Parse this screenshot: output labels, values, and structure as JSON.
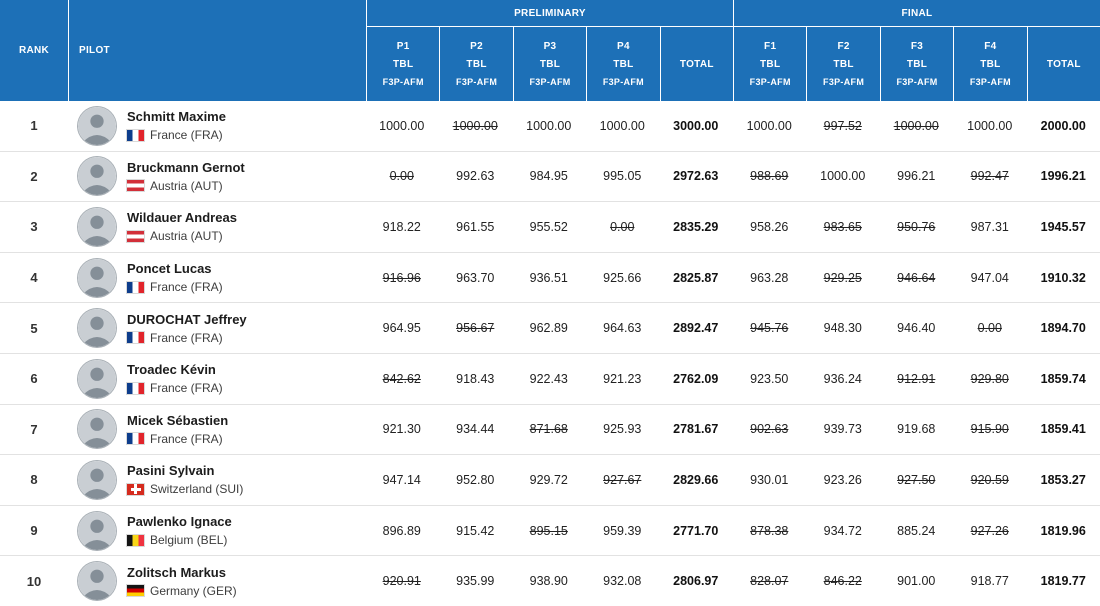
{
  "header": {
    "rank": "RANK",
    "pilot": "PILOT",
    "preliminary": {
      "group": "PRELIMINARY",
      "cols": [
        {
          "code": "P1",
          "sub": "TBL",
          "schedule": "F3P-AFM"
        },
        {
          "code": "P2",
          "sub": "TBL",
          "schedule": "F3P-AFM"
        },
        {
          "code": "P3",
          "sub": "TBL",
          "schedule": "F3P-AFM"
        },
        {
          "code": "P4",
          "sub": "TBL",
          "schedule": "F3P-AFM"
        }
      ],
      "total": "TOTAL"
    },
    "final": {
      "group": "FINAL",
      "cols": [
        {
          "code": "F1",
          "sub": "TBL",
          "schedule": "F3P-AFM"
        },
        {
          "code": "F2",
          "sub": "TBL",
          "schedule": "F3P-AFM"
        },
        {
          "code": "F3",
          "sub": "TBL",
          "schedule": "F3P-AFM"
        },
        {
          "code": "F4",
          "sub": "TBL",
          "schedule": "F3P-AFM"
        }
      ],
      "total": "TOTAL"
    }
  },
  "colors": {
    "header_blue": "#1d70b7",
    "row_divider": "#e2e2e2"
  },
  "rows": [
    {
      "rank": "1",
      "name": "Schmitt Maxime",
      "country": "France (FRA)",
      "flag": "fr",
      "prelim": [
        {
          "v": "1000.00",
          "s": false
        },
        {
          "v": "1000.00",
          "s": true
        },
        {
          "v": "1000.00",
          "s": false
        },
        {
          "v": "1000.00",
          "s": false
        }
      ],
      "prelim_total": "3000.00",
      "final": [
        {
          "v": "1000.00",
          "s": false
        },
        {
          "v": "997.52",
          "s": true
        },
        {
          "v": "1000.00",
          "s": true
        },
        {
          "v": "1000.00",
          "s": false
        }
      ],
      "final_total": "2000.00"
    },
    {
      "rank": "2",
      "name": "Bruckmann Gernot",
      "country": "Austria (AUT)",
      "flag": "at",
      "prelim": [
        {
          "v": "0.00",
          "s": true
        },
        {
          "v": "992.63",
          "s": false
        },
        {
          "v": "984.95",
          "s": false
        },
        {
          "v": "995.05",
          "s": false
        }
      ],
      "prelim_total": "2972.63",
      "final": [
        {
          "v": "988.69",
          "s": true
        },
        {
          "v": "1000.00",
          "s": false
        },
        {
          "v": "996.21",
          "s": false
        },
        {
          "v": "992.47",
          "s": true
        }
      ],
      "final_total": "1996.21"
    },
    {
      "rank": "3",
      "name": "Wildauer Andreas",
      "country": "Austria (AUT)",
      "flag": "at",
      "prelim": [
        {
          "v": "918.22",
          "s": false
        },
        {
          "v": "961.55",
          "s": false
        },
        {
          "v": "955.52",
          "s": false
        },
        {
          "v": "0.00",
          "s": true
        }
      ],
      "prelim_total": "2835.29",
      "final": [
        {
          "v": "958.26",
          "s": false
        },
        {
          "v": "983.65",
          "s": true
        },
        {
          "v": "950.76",
          "s": true
        },
        {
          "v": "987.31",
          "s": false
        }
      ],
      "final_total": "1945.57"
    },
    {
      "rank": "4",
      "name": "Poncet Lucas",
      "country": "France (FRA)",
      "flag": "fr",
      "prelim": [
        {
          "v": "916.96",
          "s": true
        },
        {
          "v": "963.70",
          "s": false
        },
        {
          "v": "936.51",
          "s": false
        },
        {
          "v": "925.66",
          "s": false
        }
      ],
      "prelim_total": "2825.87",
      "final": [
        {
          "v": "963.28",
          "s": false
        },
        {
          "v": "929.25",
          "s": true
        },
        {
          "v": "946.64",
          "s": true
        },
        {
          "v": "947.04",
          "s": false
        }
      ],
      "final_total": "1910.32"
    },
    {
      "rank": "5",
      "name": "DUROCHAT Jeffrey",
      "country": "France (FRA)",
      "flag": "fr",
      "prelim": [
        {
          "v": "964.95",
          "s": false
        },
        {
          "v": "956.67",
          "s": true
        },
        {
          "v": "962.89",
          "s": false
        },
        {
          "v": "964.63",
          "s": false
        }
      ],
      "prelim_total": "2892.47",
      "final": [
        {
          "v": "945.76",
          "s": true
        },
        {
          "v": "948.30",
          "s": false
        },
        {
          "v": "946.40",
          "s": false
        },
        {
          "v": "0.00",
          "s": true
        }
      ],
      "final_total": "1894.70"
    },
    {
      "rank": "6",
      "name": "Troadec Kévin",
      "country": "France (FRA)",
      "flag": "fr",
      "prelim": [
        {
          "v": "842.62",
          "s": true
        },
        {
          "v": "918.43",
          "s": false
        },
        {
          "v": "922.43",
          "s": false
        },
        {
          "v": "921.23",
          "s": false
        }
      ],
      "prelim_total": "2762.09",
      "final": [
        {
          "v": "923.50",
          "s": false
        },
        {
          "v": "936.24",
          "s": false
        },
        {
          "v": "912.91",
          "s": true
        },
        {
          "v": "929.80",
          "s": true
        }
      ],
      "final_total": "1859.74"
    },
    {
      "rank": "7",
      "name": "Micek Sébastien",
      "country": "France (FRA)",
      "flag": "fr",
      "prelim": [
        {
          "v": "921.30",
          "s": false
        },
        {
          "v": "934.44",
          "s": false
        },
        {
          "v": "871.68",
          "s": true
        },
        {
          "v": "925.93",
          "s": false
        }
      ],
      "prelim_total": "2781.67",
      "final": [
        {
          "v": "902.63",
          "s": true
        },
        {
          "v": "939.73",
          "s": false
        },
        {
          "v": "919.68",
          "s": false
        },
        {
          "v": "915.90",
          "s": true
        }
      ],
      "final_total": "1859.41"
    },
    {
      "rank": "8",
      "name": "Pasini Sylvain",
      "country": "Switzerland (SUI)",
      "flag": "ch",
      "prelim": [
        {
          "v": "947.14",
          "s": false
        },
        {
          "v": "952.80",
          "s": false
        },
        {
          "v": "929.72",
          "s": false
        },
        {
          "v": "927.67",
          "s": true
        }
      ],
      "prelim_total": "2829.66",
      "final": [
        {
          "v": "930.01",
          "s": false
        },
        {
          "v": "923.26",
          "s": false
        },
        {
          "v": "927.50",
          "s": true
        },
        {
          "v": "920.59",
          "s": true
        }
      ],
      "final_total": "1853.27"
    },
    {
      "rank": "9",
      "name": "Pawlenko Ignace",
      "country": "Belgium (BEL)",
      "flag": "be",
      "prelim": [
        {
          "v": "896.89",
          "s": false
        },
        {
          "v": "915.42",
          "s": false
        },
        {
          "v": "895.15",
          "s": true
        },
        {
          "v": "959.39",
          "s": false
        }
      ],
      "prelim_total": "2771.70",
      "final": [
        {
          "v": "878.38",
          "s": true
        },
        {
          "v": "934.72",
          "s": false
        },
        {
          "v": "885.24",
          "s": false
        },
        {
          "v": "927.26",
          "s": true
        }
      ],
      "final_total": "1819.96"
    },
    {
      "rank": "10",
      "name": "Zolitsch Markus",
      "country": "Germany (GER)",
      "flag": "de",
      "prelim": [
        {
          "v": "920.91",
          "s": true
        },
        {
          "v": "935.99",
          "s": false
        },
        {
          "v": "938.90",
          "s": false
        },
        {
          "v": "932.08",
          "s": false
        }
      ],
      "prelim_total": "2806.97",
      "final": [
        {
          "v": "828.07",
          "s": true
        },
        {
          "v": "846.22",
          "s": true
        },
        {
          "v": "901.00",
          "s": false
        },
        {
          "v": "918.77",
          "s": false
        }
      ],
      "final_total": "1819.77"
    }
  ]
}
